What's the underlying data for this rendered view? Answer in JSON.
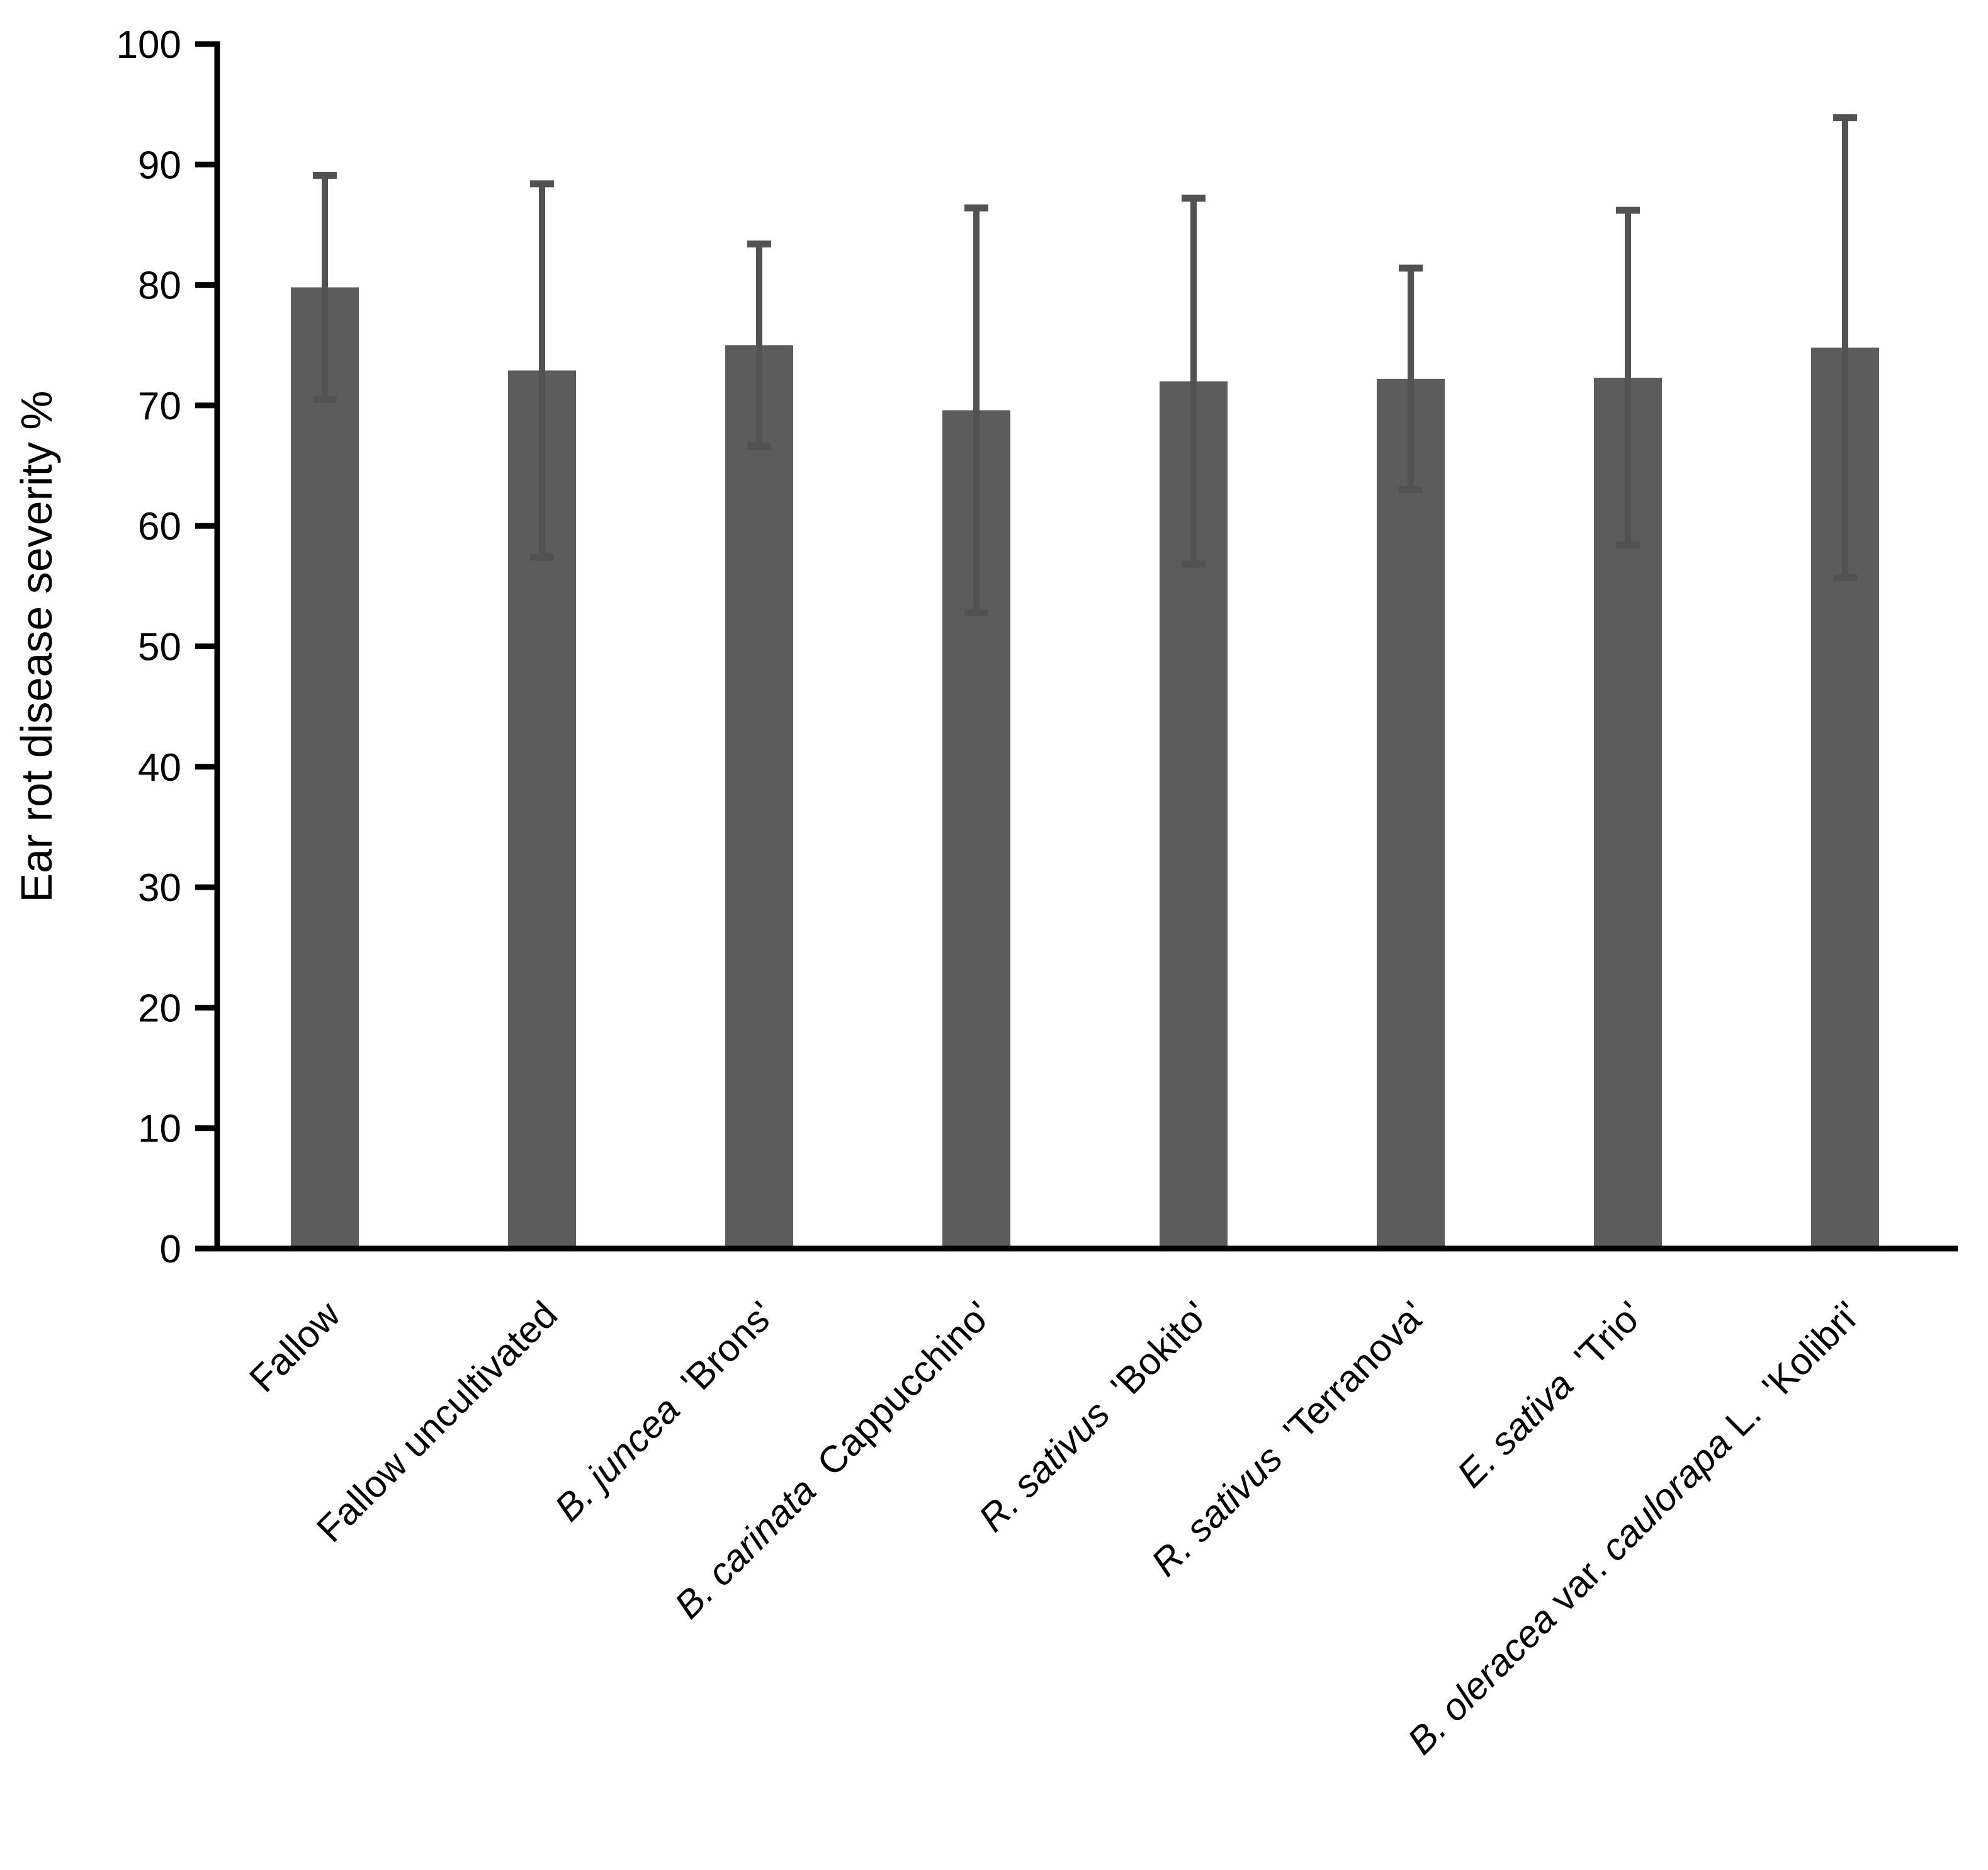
{
  "chart_data": {
    "type": "bar",
    "title": "",
    "ylabel": "Ear rot disease severity %",
    "xlabel": "",
    "ylim": [
      0,
      100
    ],
    "yticks": [
      0,
      10,
      20,
      30,
      40,
      50,
      60,
      70,
      80,
      90,
      100
    ],
    "grid": false,
    "legend_position": "none",
    "bar_color": "#5c5c5c",
    "error_bar_color": "#525252",
    "axis_color": "#000000",
    "error_direction": "both",
    "categories": [
      {
        "label": "Fallow",
        "segments": [
          {
            "text": "Fallow",
            "italic": false
          }
        ]
      },
      {
        "label": "Fallow uncultivated",
        "segments": [
          {
            "text": "Fallow uncultivated",
            "italic": false
          }
        ]
      },
      {
        "label": "B. juncea  'Brons'",
        "segments": [
          {
            "text": "B. juncea",
            "italic": true
          },
          {
            "text": "  'Brons'",
            "italic": false
          }
        ]
      },
      {
        "label": "B. carinata  Cappucchino'",
        "segments": [
          {
            "text": "B. carinata",
            "italic": true
          },
          {
            "text": "  Cappucchino'",
            "italic": false
          }
        ]
      },
      {
        "label": "R. sativus  'Bokito'",
        "segments": [
          {
            "text": "R. sativus",
            "italic": true
          },
          {
            "text": "  'Bokito'",
            "italic": false
          }
        ]
      },
      {
        "label": "R. sativus  'Terranova'",
        "segments": [
          {
            "text": "R. sativus",
            "italic": true
          },
          {
            "text": "  'Terranova'",
            "italic": false
          }
        ]
      },
      {
        "label": "E. sativa  'Trio'",
        "segments": [
          {
            "text": "E. sativa",
            "italic": true
          },
          {
            "text": "  'Trio'",
            "italic": false
          }
        ]
      },
      {
        "label": "B. oleracea var. caulorapa L.  'Kolibri'",
        "segments": [
          {
            "text": "B. oleracea",
            "italic": true
          },
          {
            "text": " var. ",
            "italic": false
          },
          {
            "text": "caulorapa",
            "italic": true
          },
          {
            "text": " L.  'Kolibri'",
            "italic": false
          }
        ]
      }
    ],
    "values": [
      79.8,
      72.9,
      75.0,
      69.6,
      72.0,
      72.2,
      72.3,
      74.8
    ],
    "errors": [
      9.3,
      15.5,
      8.4,
      16.8,
      15.2,
      9.2,
      13.9,
      19.1
    ]
  }
}
